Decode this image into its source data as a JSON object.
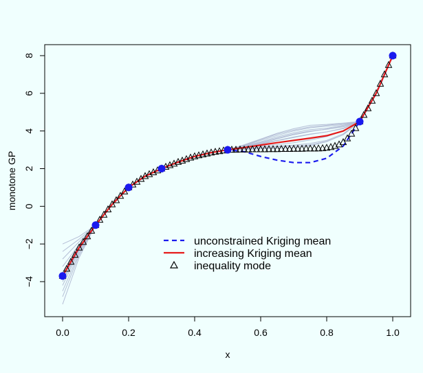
{
  "chart_data": {
    "type": "line",
    "xlabel": "x",
    "ylabel": "monotone GP",
    "xlim": [
      0,
      1
    ],
    "ylim": [
      -6,
      9
    ],
    "x_ticks": [
      "0.0",
      "0.2",
      "0.4",
      "0.6",
      "0.8",
      "1.0"
    ],
    "x_tick_values": [
      0,
      0.2,
      0.4,
      0.6,
      0.8,
      1.0
    ],
    "y_ticks": [
      "−4",
      "−2",
      "0",
      "2",
      "4",
      "6",
      "8"
    ],
    "y_tick_values": [
      -4,
      -2,
      0,
      2,
      4,
      6,
      8
    ],
    "legend_position": "bottom-center",
    "colors": {
      "background": "#f0fffe",
      "samples": "#b4bed6",
      "unconstrained": "#1a1aee",
      "increasing": "#e51a1a",
      "mode_marker": "#000000",
      "design_points": "#1a1aee"
    },
    "series": [
      {
        "name": "unconstrained Kriging mean",
        "style": "dashed",
        "x": [
          0.0,
          0.05,
          0.1,
          0.15,
          0.2,
          0.25,
          0.3,
          0.35,
          0.4,
          0.45,
          0.5,
          0.55,
          0.6,
          0.65,
          0.7,
          0.75,
          0.8,
          0.85,
          0.9,
          0.95,
          1.0
        ],
        "y": [
          -3.7,
          -2.2,
          -1.0,
          0.1,
          1.0,
          1.6,
          2.0,
          2.35,
          2.65,
          2.85,
          3.0,
          2.9,
          2.65,
          2.45,
          2.32,
          2.32,
          2.55,
          3.2,
          4.5,
          6.0,
          8.0
        ]
      },
      {
        "name": "increasing Kriging mean",
        "style": "solid",
        "x": [
          0.0,
          0.05,
          0.1,
          0.15,
          0.2,
          0.25,
          0.3,
          0.35,
          0.4,
          0.45,
          0.5,
          0.55,
          0.6,
          0.65,
          0.7,
          0.75,
          0.8,
          0.85,
          0.9,
          0.95,
          1.0
        ],
        "y": [
          -3.7,
          -2.2,
          -1.0,
          0.1,
          1.0,
          1.6,
          2.0,
          2.35,
          2.65,
          2.85,
          3.0,
          3.12,
          3.25,
          3.38,
          3.5,
          3.62,
          3.75,
          4.0,
          4.5,
          6.0,
          8.0
        ]
      },
      {
        "name": "inequality mode",
        "style": "markers",
        "x": [
          0.0,
          0.0125,
          0.025,
          0.0375,
          0.05,
          0.0625,
          0.075,
          0.0875,
          0.1,
          0.1125,
          0.125,
          0.1375,
          0.15,
          0.1625,
          0.175,
          0.1875,
          0.2,
          0.2125,
          0.225,
          0.2375,
          0.25,
          0.2625,
          0.275,
          0.2875,
          0.3,
          0.3125,
          0.325,
          0.3375,
          0.35,
          0.3625,
          0.375,
          0.3875,
          0.4,
          0.4125,
          0.425,
          0.4375,
          0.45,
          0.4625,
          0.475,
          0.4875,
          0.5,
          0.5125,
          0.525,
          0.5375,
          0.55,
          0.5625,
          0.575,
          0.5875,
          0.6,
          0.6125,
          0.625,
          0.6375,
          0.65,
          0.6625,
          0.675,
          0.6875,
          0.7,
          0.7125,
          0.725,
          0.7375,
          0.75,
          0.7625,
          0.775,
          0.7875,
          0.8,
          0.8125,
          0.825,
          0.8375,
          0.85,
          0.8625,
          0.875,
          0.8875,
          0.9,
          0.9125,
          0.925,
          0.9375,
          0.95,
          0.9625,
          0.975,
          0.9875,
          1.0
        ],
        "y": [
          -3.7,
          -3.32,
          -2.95,
          -2.58,
          -2.2,
          -1.9,
          -1.6,
          -1.3,
          -1.0,
          -0.72,
          -0.45,
          -0.17,
          0.1,
          0.32,
          0.55,
          0.78,
          1.0,
          1.15,
          1.3,
          1.45,
          1.6,
          1.7,
          1.8,
          1.9,
          2.0,
          2.09,
          2.18,
          2.26,
          2.35,
          2.42,
          2.5,
          2.58,
          2.65,
          2.7,
          2.75,
          2.8,
          2.85,
          2.89,
          2.92,
          2.96,
          3.0,
          3.0,
          3.0,
          3.01,
          3.01,
          3.01,
          3.02,
          3.02,
          3.02,
          3.02,
          3.03,
          3.03,
          3.03,
          3.04,
          3.04,
          3.04,
          3.05,
          3.05,
          3.05,
          3.06,
          3.06,
          3.06,
          3.07,
          3.08,
          3.1,
          3.14,
          3.2,
          3.28,
          3.4,
          3.6,
          3.85,
          4.15,
          4.5,
          4.85,
          5.2,
          5.6,
          6.0,
          6.5,
          7.0,
          7.5,
          8.0
        ]
      }
    ],
    "sample_paths": [
      {
        "y0": -5.2,
        "b": [
          0.0,
          0.0,
          0.0,
          0.0,
          0.0,
          0.0,
          0.0,
          0.0,
          0.0,
          0.0,
          0.0,
          0.05,
          0.1,
          0.2,
          0.3,
          0.35,
          0.35,
          0.25,
          0.0,
          0.0,
          0.0
        ]
      },
      {
        "y0": -4.8,
        "b": [
          0.0,
          0.0,
          0.0,
          0.0,
          0.0,
          0.0,
          0.0,
          0.0,
          0.0,
          0.0,
          0.0,
          0.02,
          0.05,
          0.1,
          0.15,
          0.2,
          0.2,
          0.15,
          0.0,
          0.0,
          0.0
        ]
      },
      {
        "y0": -4.5,
        "b": [
          0.0,
          0.0,
          0.0,
          0.0,
          0.0,
          0.0,
          0.0,
          0.0,
          0.0,
          0.0,
          0.0,
          0.08,
          0.18,
          0.3,
          0.4,
          0.45,
          0.4,
          0.3,
          0.0,
          0.0,
          0.0
        ]
      },
      {
        "y0": -4.2,
        "b": [
          0.0,
          0.0,
          0.0,
          0.0,
          0.0,
          0.0,
          0.0,
          0.0,
          0.0,
          0.0,
          0.0,
          -0.02,
          -0.05,
          -0.1,
          -0.12,
          -0.1,
          -0.05,
          0.0,
          0.0,
          0.0,
          0.0
        ]
      },
      {
        "y0": -3.9,
        "b": [
          0.0,
          0.0,
          0.0,
          0.0,
          0.0,
          0.0,
          0.0,
          0.0,
          0.0,
          0.0,
          0.0,
          0.1,
          0.25,
          0.38,
          0.5,
          0.55,
          0.5,
          0.35,
          0.0,
          0.0,
          0.0
        ]
      },
      {
        "y0": -3.5,
        "b": [
          0.0,
          0.0,
          0.0,
          0.0,
          0.0,
          0.0,
          0.0,
          0.0,
          0.0,
          0.0,
          0.0,
          -0.05,
          -0.1,
          -0.18,
          -0.25,
          -0.28,
          -0.25,
          -0.15,
          0.0,
          0.0,
          0.0
        ]
      },
      {
        "y0": -3.2,
        "b": [
          0.0,
          0.0,
          0.0,
          0.0,
          0.0,
          0.0,
          0.0,
          0.0,
          0.0,
          0.0,
          0.0,
          0.12,
          0.3,
          0.45,
          0.55,
          0.6,
          0.55,
          0.4,
          0.0,
          0.0,
          0.0
        ]
      },
      {
        "y0": -2.8,
        "b": [
          0.0,
          0.0,
          0.0,
          0.0,
          0.0,
          0.0,
          0.0,
          0.0,
          0.0,
          0.0,
          0.0,
          -0.08,
          -0.15,
          -0.22,
          -0.3,
          -0.35,
          -0.3,
          -0.2,
          0.0,
          0.0,
          0.0
        ]
      },
      {
        "y0": -2.4,
        "b": [
          0.0,
          0.0,
          0.0,
          0.0,
          0.0,
          0.0,
          0.0,
          0.0,
          0.0,
          0.0,
          0.0,
          0.04,
          0.08,
          0.12,
          0.18,
          0.22,
          0.2,
          0.12,
          0.0,
          0.0,
          0.0
        ]
      },
      {
        "y0": -2.0,
        "b": [
          0.0,
          0.0,
          0.0,
          0.0,
          0.0,
          0.0,
          0.0,
          0.0,
          0.0,
          0.0,
          0.0,
          -0.1,
          -0.2,
          -0.3,
          -0.38,
          -0.4,
          -0.32,
          -0.2,
          0.0,
          0.0,
          0.0
        ]
      },
      {
        "y0": -4.0,
        "b": [
          0.0,
          0.0,
          0.0,
          0.0,
          0.0,
          0.0,
          0.0,
          0.0,
          0.0,
          0.0,
          0.0,
          0.15,
          0.32,
          0.5,
          0.62,
          0.68,
          0.6,
          0.42,
          0.0,
          0.0,
          0.0
        ]
      },
      {
        "y0": -3.6,
        "b": [
          0.0,
          0.0,
          0.0,
          0.0,
          0.0,
          0.0,
          0.0,
          0.0,
          0.0,
          0.0,
          0.0,
          0.06,
          0.14,
          0.24,
          0.34,
          0.38,
          0.34,
          0.22,
          0.0,
          0.0,
          0.0
        ]
      }
    ],
    "design_points": {
      "x": [
        0.0,
        0.1,
        0.2,
        0.3,
        0.5,
        0.9,
        1.0
      ],
      "y": [
        -3.7,
        -1.0,
        1.0,
        2.0,
        3.0,
        4.5,
        8.0
      ]
    }
  }
}
